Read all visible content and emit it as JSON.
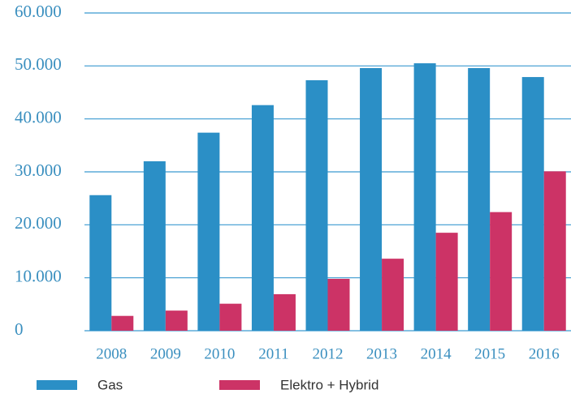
{
  "chart_data": {
    "type": "bar",
    "categories": [
      "2008",
      "2009",
      "2010",
      "2011",
      "2012",
      "2013",
      "2014",
      "2015",
      "2016"
    ],
    "series": [
      {
        "name": "Gas",
        "color": "#2b8fc6",
        "values": [
          25600,
          32000,
          37400,
          42600,
          47300,
          49600,
          50500,
          49600,
          47900
        ]
      },
      {
        "name": "Elektro + Hybrid",
        "color": "#cc3366",
        "values": [
          2800,
          3800,
          5100,
          6900,
          9800,
          13600,
          18500,
          22400,
          30100
        ]
      }
    ],
    "ylim": [
      0,
      60000
    ],
    "yticks": [
      0,
      {
        "value": 10000,
        "label": "10.000"
      },
      {
        "value": 20000,
        "label": "20.000"
      },
      {
        "value": 30000,
        "label": "30.000"
      },
      {
        "value": 40000,
        "label": "40.000"
      },
      {
        "value": 50000,
        "label": "50.000"
      },
      {
        "value": 60000,
        "label": "60.000"
      }
    ],
    "grid": true
  }
}
